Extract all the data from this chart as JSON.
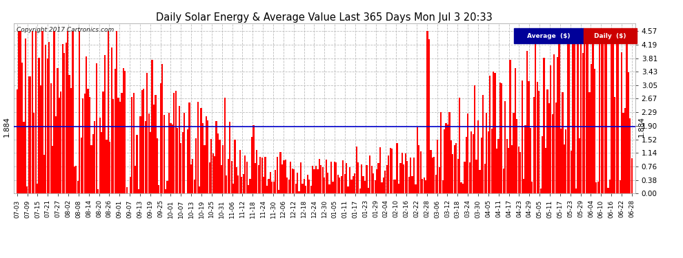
{
  "title": "Daily Solar Energy & Average Value Last 365 Days Mon Jul 3 20:33",
  "copyright": "Copyright 2017 Cartronics.com",
  "average_value": 1.884,
  "ylim": [
    0.0,
    4.795
  ],
  "yticks": [
    0.0,
    0.38,
    0.76,
    1.14,
    1.52,
    1.9,
    2.29,
    2.67,
    3.05,
    3.43,
    3.81,
    4.19,
    4.57
  ],
  "bar_color": "#ff0000",
  "avg_line_color": "#0000cc",
  "background_color": "#ffffff",
  "legend_avg_bg": "#000099",
  "legend_daily_bg": "#cc0000",
  "x_labels": [
    "07-03",
    "07-09",
    "07-15",
    "07-21",
    "07-27",
    "08-02",
    "08-08",
    "08-14",
    "08-20",
    "08-26",
    "09-01",
    "09-07",
    "09-13",
    "09-19",
    "09-25",
    "10-01",
    "10-07",
    "10-13",
    "10-19",
    "10-25",
    "10-31",
    "11-06",
    "11-12",
    "11-18",
    "11-24",
    "11-30",
    "12-06",
    "12-12",
    "12-18",
    "12-24",
    "12-30",
    "01-05",
    "01-11",
    "01-17",
    "01-23",
    "01-29",
    "02-04",
    "02-10",
    "02-16",
    "02-22",
    "02-28",
    "03-06",
    "03-12",
    "03-18",
    "03-24",
    "03-30",
    "04-05",
    "04-11",
    "04-17",
    "04-23",
    "04-29",
    "05-05",
    "05-11",
    "05-17",
    "05-23",
    "05-29",
    "06-04",
    "06-10",
    "06-16",
    "06-22",
    "06-28"
  ],
  "n_bars": 365
}
